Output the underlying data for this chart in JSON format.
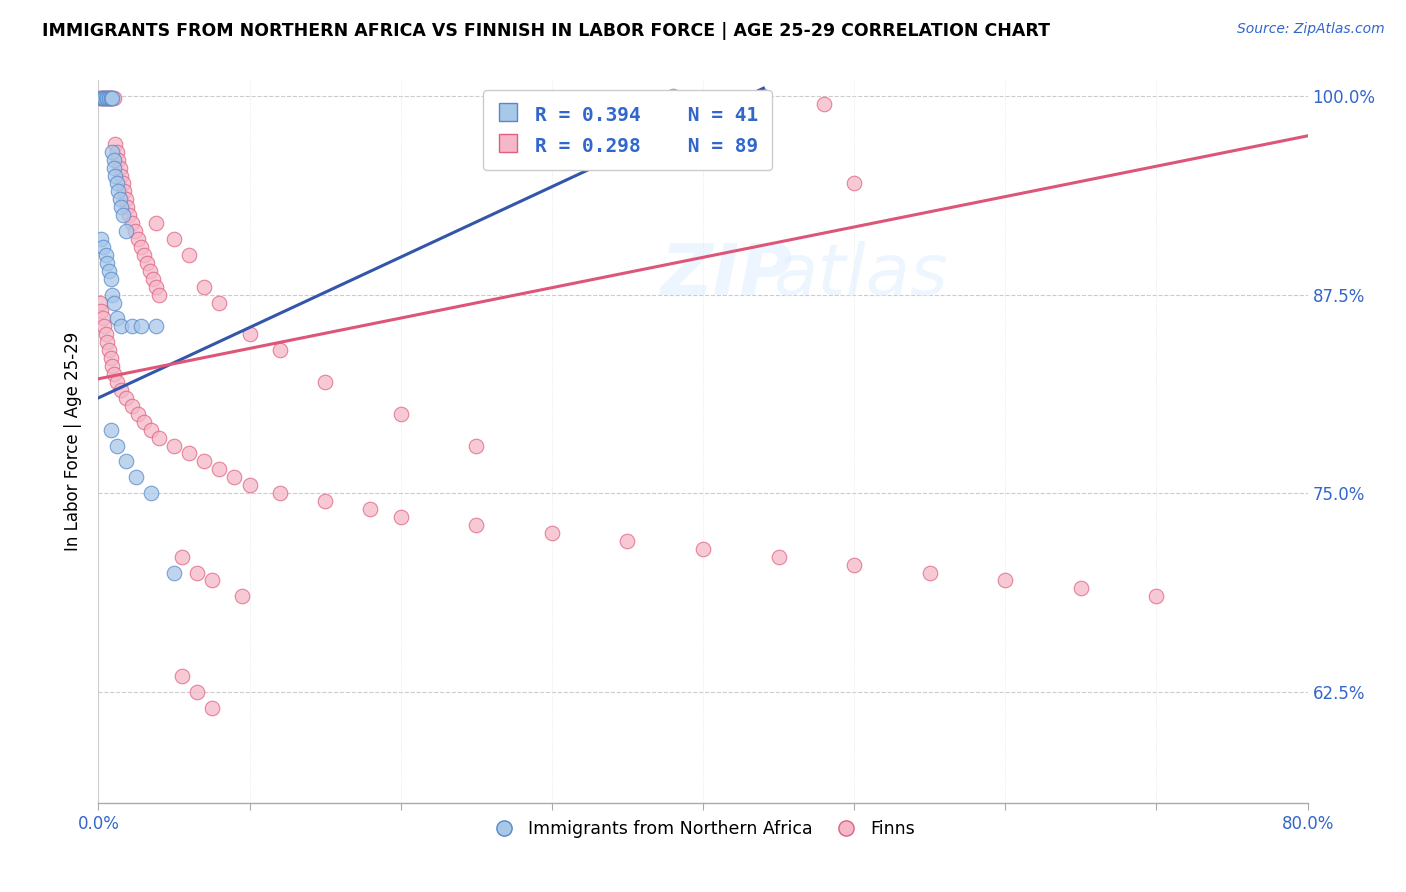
{
  "title": "IMMIGRANTS FROM NORTHERN AFRICA VS FINNISH IN LABOR FORCE | AGE 25-29 CORRELATION CHART",
  "source": "Source: ZipAtlas.com",
  "ylabel": "In Labor Force | Age 25-29",
  "xlim": [
    0.0,
    0.8
  ],
  "ylim": [
    0.555,
    1.01
  ],
  "yticks": [
    0.625,
    0.75,
    0.875,
    1.0
  ],
  "yticklabels": [
    "62.5%",
    "75.0%",
    "87.5%",
    "100.0%"
  ],
  "blue_color": "#A8C8E8",
  "pink_color": "#F4B8C8",
  "blue_edge_color": "#5588CC",
  "pink_edge_color": "#E06080",
  "blue_line_color": "#3355AA",
  "pink_line_color": "#DD5577",
  "legend_label_blue": "Immigrants from Northern Africa",
  "legend_label_pink": "Finns",
  "blue_r_text": "R = 0.394",
  "blue_n_text": "N = 41",
  "pink_r_text": "R = 0.298",
  "pink_n_text": "N = 89",
  "blue_line_x0": 0.0,
  "blue_line_y0": 0.81,
  "blue_line_x1": 0.44,
  "blue_line_y1": 1.005,
  "pink_line_x0": 0.0,
  "pink_line_y0": 0.822,
  "pink_line_x1": 0.8,
  "pink_line_y1": 0.975,
  "blue_pts_x": [
    0.002,
    0.003,
    0.004,
    0.005,
    0.006,
    0.007,
    0.007,
    0.008,
    0.008,
    0.009,
    0.009,
    0.01,
    0.01,
    0.011,
    0.012,
    0.013,
    0.014,
    0.015,
    0.016,
    0.018,
    0.002,
    0.003,
    0.005,
    0.006,
    0.007,
    0.008,
    0.009,
    0.01,
    0.012,
    0.015,
    0.022,
    0.028,
    0.038,
    0.008,
    0.012,
    0.018,
    0.025,
    0.035,
    0.05,
    0.38,
    0.44
  ],
  "blue_pts_y": [
    0.999,
    0.999,
    0.999,
    0.999,
    0.999,
    0.999,
    0.999,
    0.999,
    0.999,
    0.999,
    0.965,
    0.96,
    0.955,
    0.95,
    0.945,
    0.94,
    0.935,
    0.93,
    0.925,
    0.915,
    0.91,
    0.905,
    0.9,
    0.895,
    0.89,
    0.885,
    0.875,
    0.87,
    0.86,
    0.855,
    0.855,
    0.855,
    0.855,
    0.79,
    0.78,
    0.77,
    0.76,
    0.75,
    0.7,
    1.0,
    1.0
  ],
  "pink_pts_x": [
    0.001,
    0.002,
    0.003,
    0.004,
    0.005,
    0.006,
    0.007,
    0.008,
    0.009,
    0.01,
    0.011,
    0.012,
    0.013,
    0.014,
    0.015,
    0.016,
    0.017,
    0.018,
    0.019,
    0.02,
    0.022,
    0.024,
    0.026,
    0.028,
    0.03,
    0.032,
    0.034,
    0.036,
    0.038,
    0.04,
    0.001,
    0.002,
    0.003,
    0.004,
    0.005,
    0.006,
    0.007,
    0.008,
    0.009,
    0.01,
    0.012,
    0.015,
    0.018,
    0.022,
    0.026,
    0.03,
    0.035,
    0.04,
    0.05,
    0.06,
    0.07,
    0.08,
    0.09,
    0.1,
    0.12,
    0.15,
    0.18,
    0.2,
    0.25,
    0.3,
    0.35,
    0.4,
    0.45,
    0.5,
    0.55,
    0.6,
    0.65,
    0.7,
    0.038,
    0.05,
    0.06,
    0.07,
    0.08,
    0.1,
    0.12,
    0.15,
    0.2,
    0.25,
    0.4,
    0.5,
    0.055,
    0.065,
    0.075,
    0.095,
    0.055,
    0.065,
    0.075,
    0.38,
    0.48
  ],
  "pink_pts_y": [
    0.999,
    0.999,
    0.999,
    0.999,
    0.999,
    0.999,
    0.999,
    0.999,
    0.999,
    0.999,
    0.97,
    0.965,
    0.96,
    0.955,
    0.95,
    0.945,
    0.94,
    0.935,
    0.93,
    0.925,
    0.92,
    0.915,
    0.91,
    0.905,
    0.9,
    0.895,
    0.89,
    0.885,
    0.88,
    0.875,
    0.87,
    0.865,
    0.86,
    0.855,
    0.85,
    0.845,
    0.84,
    0.835,
    0.83,
    0.825,
    0.82,
    0.815,
    0.81,
    0.805,
    0.8,
    0.795,
    0.79,
    0.785,
    0.78,
    0.775,
    0.77,
    0.765,
    0.76,
    0.755,
    0.75,
    0.745,
    0.74,
    0.735,
    0.73,
    0.725,
    0.72,
    0.715,
    0.71,
    0.705,
    0.7,
    0.695,
    0.69,
    0.685,
    0.92,
    0.91,
    0.9,
    0.88,
    0.87,
    0.85,
    0.84,
    0.82,
    0.8,
    0.78,
    0.96,
    0.945,
    0.71,
    0.7,
    0.695,
    0.685,
    0.635,
    0.625,
    0.615,
    0.995,
    0.995
  ]
}
